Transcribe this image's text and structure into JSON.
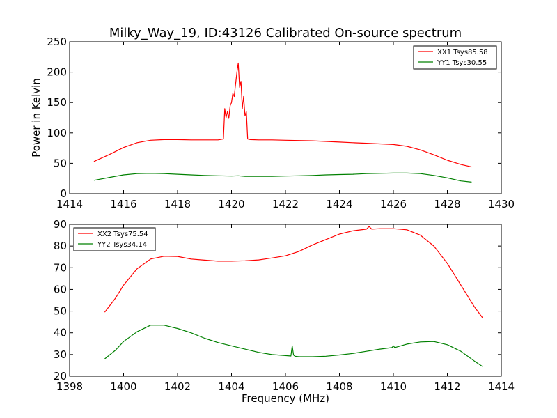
{
  "figure": {
    "title": "Milky_Way_19, ID:43126 Calibrated On-source spectrum"
  },
  "chart_data": [
    {
      "type": "line",
      "title": "Milky_Way_19, ID:43126 Calibrated On-source spectrum",
      "xlabel": "",
      "ylabel": "Power in Kelvin",
      "xlim": [
        1414,
        1430
      ],
      "ylim": [
        0,
        250
      ],
      "xticks": [
        1414,
        1416,
        1418,
        1420,
        1422,
        1424,
        1426,
        1428,
        1430
      ],
      "yticks": [
        0,
        50,
        100,
        150,
        200,
        250
      ],
      "grid": false,
      "legend_position": "top-right",
      "series": [
        {
          "name": "XX1 Tsys85.58",
          "color": "#ff0000",
          "x": [
            1414.9,
            1415.5,
            1416.0,
            1416.5,
            1417.0,
            1417.5,
            1418.0,
            1418.5,
            1419.0,
            1419.5,
            1419.7,
            1419.75,
            1419.8,
            1419.85,
            1419.9,
            1419.95,
            1420.0,
            1420.05,
            1420.1,
            1420.15,
            1420.2,
            1420.25,
            1420.3,
            1420.35,
            1420.4,
            1420.45,
            1420.5,
            1420.55,
            1420.6,
            1420.7,
            1421.0,
            1421.5,
            1422.0,
            1422.5,
            1423.0,
            1423.5,
            1424.0,
            1424.5,
            1425.0,
            1425.5,
            1426.0,
            1426.5,
            1427.0,
            1427.5,
            1428.0,
            1428.5,
            1428.9
          ],
          "values": [
            53,
            65,
            76,
            84,
            88,
            89,
            89,
            88.5,
            88.5,
            88.5,
            90,
            140,
            125,
            135,
            124,
            145,
            150,
            165,
            160,
            180,
            200,
            215,
            175,
            185,
            140,
            160,
            128,
            135,
            90,
            89,
            88.5,
            88.5,
            88,
            87.5,
            87,
            86,
            85,
            84,
            83,
            82,
            81,
            78,
            72,
            64,
            55,
            48,
            44
          ]
        },
        {
          "name": "YY1 Tsys30.55",
          "color": "#008000",
          "x": [
            1414.9,
            1415.5,
            1416.0,
            1416.5,
            1417.0,
            1417.5,
            1418.0,
            1418.5,
            1419.0,
            1419.5,
            1420.0,
            1420.25,
            1420.5,
            1421.0,
            1421.5,
            1422.0,
            1422.5,
            1423.0,
            1423.5,
            1424.0,
            1424.5,
            1425.0,
            1425.5,
            1426.0,
            1426.5,
            1427.0,
            1427.5,
            1428.0,
            1428.5,
            1428.9
          ],
          "values": [
            22,
            27,
            31,
            33,
            33.5,
            33,
            32,
            31,
            30,
            29.5,
            29,
            29.5,
            28.5,
            28.5,
            28.5,
            29,
            29.5,
            30,
            31,
            31.5,
            32,
            33,
            33.5,
            34,
            34,
            33,
            30,
            26,
            21,
            19
          ]
        }
      ]
    },
    {
      "type": "line",
      "title": "",
      "xlabel": "Frequency (MHz)",
      "ylabel": "",
      "xlim": [
        1398,
        1414
      ],
      "ylim": [
        20,
        90
      ],
      "xticks": [
        1398,
        1400,
        1402,
        1404,
        1406,
        1408,
        1410,
        1412,
        1414
      ],
      "yticks": [
        20,
        30,
        40,
        50,
        60,
        70,
        80,
        90
      ],
      "grid": false,
      "legend_position": "top-left",
      "series": [
        {
          "name": "XX2 Tsys75.54",
          "color": "#ff0000",
          "x": [
            1399.3,
            1399.7,
            1400.0,
            1400.5,
            1401.0,
            1401.5,
            1402.0,
            1402.5,
            1403.0,
            1403.5,
            1404.0,
            1404.5,
            1405.0,
            1405.5,
            1406.0,
            1406.5,
            1407.0,
            1407.5,
            1408.0,
            1408.5,
            1409.0,
            1409.1,
            1409.2,
            1409.5,
            1410.0,
            1410.5,
            1411.0,
            1411.5,
            1412.0,
            1412.5,
            1413.0,
            1413.3
          ],
          "values": [
            49.5,
            56,
            62,
            69.5,
            74,
            75.3,
            75.2,
            74,
            73.5,
            73,
            73,
            73.2,
            73.6,
            74.5,
            75.5,
            77.5,
            80.5,
            83,
            85.5,
            87,
            87.8,
            89,
            87.8,
            88,
            88,
            87.5,
            85,
            80,
            72,
            62,
            52,
            47
          ]
        },
        {
          "name": "YY2 Tsys34.14",
          "color": "#008000",
          "x": [
            1399.3,
            1399.7,
            1400.0,
            1400.5,
            1401.0,
            1401.5,
            1402.0,
            1402.5,
            1403.0,
            1403.5,
            1404.0,
            1404.5,
            1405.0,
            1405.5,
            1406.0,
            1406.2,
            1406.25,
            1406.3,
            1406.35,
            1406.5,
            1407.0,
            1407.5,
            1408.0,
            1408.5,
            1409.0,
            1409.5,
            1409.95,
            1410.0,
            1410.05,
            1410.5,
            1411.0,
            1411.5,
            1412.0,
            1412.5,
            1413.0,
            1413.3
          ],
          "values": [
            28,
            32,
            36,
            40.5,
            43.5,
            43.5,
            42,
            40,
            37.5,
            35.5,
            34,
            32.5,
            31,
            30,
            29.5,
            29.3,
            34,
            29.8,
            29.2,
            29,
            29,
            29.2,
            29.8,
            30.5,
            31.5,
            32.5,
            33.2,
            34,
            33.2,
            34.8,
            35.8,
            36,
            34.5,
            31.5,
            27,
            24.5
          ]
        }
      ]
    }
  ]
}
